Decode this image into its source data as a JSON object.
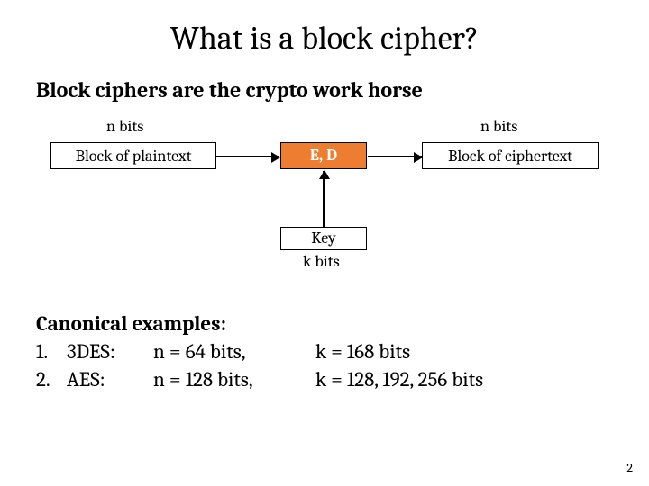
{
  "colors": {
    "page_bg": "#ffffff",
    "text": "#000000",
    "box_border": "#000000",
    "ed_fill": "#ed7d31",
    "ed_text": "#ffffff"
  },
  "typography": {
    "family": "Cambria, Georgia, serif",
    "title_size_pt": 36,
    "subtitle_size_pt": 24,
    "body_size_pt": 18,
    "examples_size_pt": 23
  },
  "title": "What is a block cipher?",
  "subtitle": "Block ciphers are the crypto work horse",
  "diagram": {
    "type": "flowchart",
    "nbits_label_left": "n bits",
    "nbits_label_right": "n bits",
    "plaintext_box": "Block of plaintext",
    "ed_box": "E, D",
    "ciphertext_box": "Block of ciphertext",
    "key_box": "Key",
    "kbits_label": "k bits"
  },
  "examples": {
    "header": "Canonical examples:",
    "rows": [
      {
        "num": "1.",
        "name": "3DES:",
        "nval": "n = 64 bits,",
        "kval": "k = 168 bits"
      },
      {
        "num": "2.",
        "name": "AES:",
        "nval": "n = 128 bits,",
        "kval": "k = 128, 192, 256 bits"
      }
    ]
  },
  "page_number": "2"
}
